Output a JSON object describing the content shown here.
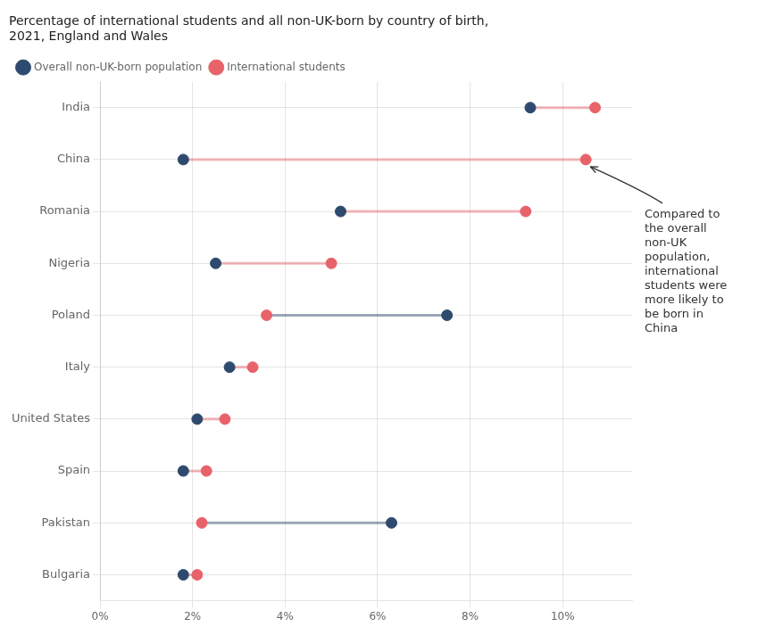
{
  "chart_data": {
    "type": "dumbbell",
    "title": "Percentage of international students and all non-UK-born by country of birth,\n2021, England and Wales",
    "categories": [
      "India",
      "China",
      "Romania",
      "Nigeria",
      "Poland",
      "Italy",
      "United States",
      "Spain",
      "Pakistan",
      "Bulgaria"
    ],
    "series": [
      {
        "name": "Overall non-UK-born population",
        "color": "#2e4a6e",
        "values": [
          9.3,
          1.8,
          5.2,
          2.5,
          7.5,
          2.8,
          2.1,
          1.8,
          6.3,
          1.8
        ]
      },
      {
        "name": "International students",
        "color": "#e8626a",
        "values": [
          10.7,
          10.5,
          9.2,
          5.0,
          3.6,
          3.3,
          2.7,
          2.3,
          2.2,
          2.1
        ]
      }
    ],
    "xlim": [
      0,
      11.5
    ],
    "xticks": [
      {
        "value": 0,
        "label": "0%"
      },
      {
        "value": 2,
        "label": "2%"
      },
      {
        "value": 4,
        "label": "4%"
      },
      {
        "value": 6,
        "label": "6%"
      },
      {
        "value": 8,
        "label": "8%"
      },
      {
        "value": 10,
        "label": "10%"
      }
    ],
    "grid": true,
    "legend": "top",
    "annotation": {
      "text": "Compared to\nthe overall\nnon-UK\npopulation,\ninternational\nstudents were\nmore likely to\nbe born in\nChina",
      "category": "China",
      "series": "International students"
    }
  }
}
